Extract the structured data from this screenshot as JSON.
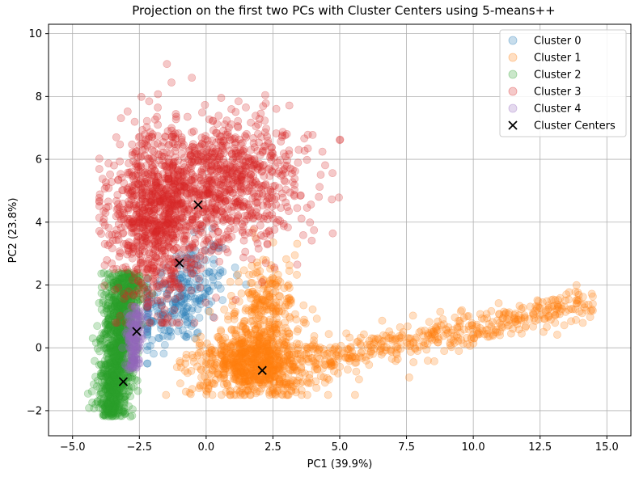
{
  "chart_data": {
    "type": "scatter",
    "title": "Projection on the first two PCs with Cluster Centers using 5-means++",
    "xlabel": "PC1 (39.9%)",
    "ylabel": "PC2 (23.8%)",
    "xlim": [
      -5.9,
      15.9
    ],
    "ylim": [
      -2.8,
      10.3
    ],
    "xticks": [
      -5.0,
      -2.5,
      0.0,
      2.5,
      5.0,
      7.5,
      10.0,
      12.5,
      15.0
    ],
    "xtick_labels": [
      "−5.0",
      "−2.5",
      "0.0",
      "2.5",
      "5.0",
      "7.5",
      "10.0",
      "12.5",
      "15.0"
    ],
    "yticks": [
      -2,
      0,
      2,
      4,
      6,
      8,
      10
    ],
    "ytick_labels": [
      "−2",
      "0",
      "2",
      "4",
      "6",
      "8",
      "10"
    ],
    "grid": true,
    "legend_position": "top-right",
    "series": [
      {
        "name": "Cluster 0",
        "color": "#1f77b4",
        "region": {
          "x": [
            -2.2,
            1.5
          ],
          "y": [
            -0.5,
            3.8
          ]
        }
      },
      {
        "name": "Cluster 1",
        "color": "#ff7f0e",
        "region": {
          "x": [
            -1.5,
            14.8
          ],
          "y": [
            -1.5,
            4.0
          ]
        }
      },
      {
        "name": "Cluster 2",
        "color": "#2ca02c",
        "region": {
          "x": [
            -4.6,
            -0.8
          ],
          "y": [
            -2.3,
            2.5
          ]
        }
      },
      {
        "name": "Cluster 3",
        "color": "#d62728",
        "region": {
          "x": [
            -4.0,
            6.0
          ],
          "y": [
            0.8,
            9.7
          ]
        }
      },
      {
        "name": "Cluster 4",
        "color": "#9467bd",
        "region": {
          "x": [
            -3.3,
            -1.8
          ],
          "y": [
            -0.8,
            1.5
          ]
        }
      }
    ],
    "centers": {
      "name": "Cluster Centers",
      "points": [
        {
          "x": -0.3,
          "y": 4.55
        },
        {
          "x": -1.0,
          "y": 2.7
        },
        {
          "x": 2.1,
          "y": -0.72
        },
        {
          "x": -2.6,
          "y": 0.52
        },
        {
          "x": -3.1,
          "y": -1.08
        }
      ]
    }
  }
}
